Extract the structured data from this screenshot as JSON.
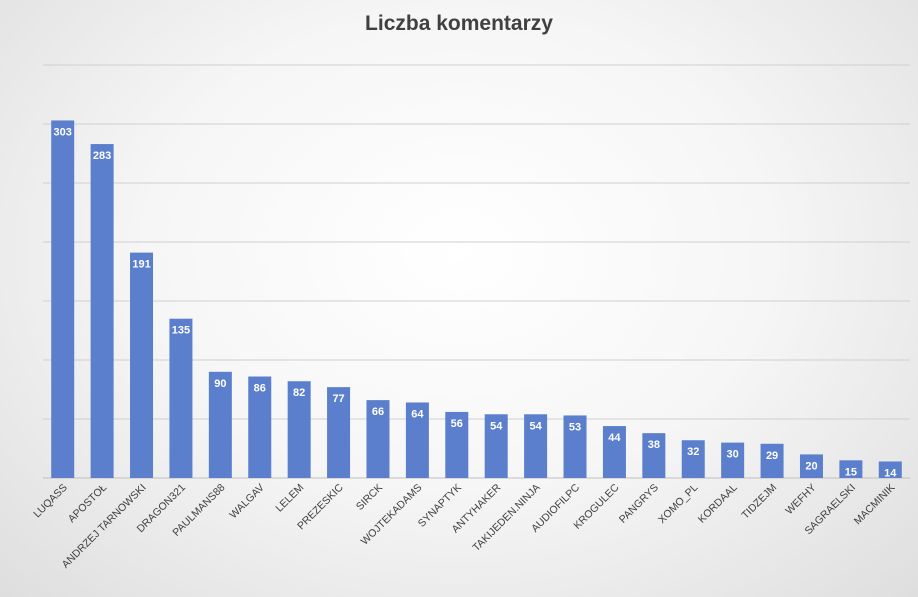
{
  "chart_data": {
    "type": "bar",
    "title": "Liczba komentarzy",
    "categories": [
      "LUQASS",
      "APOSTOŁ",
      "ANDRZEJ TARNOWSKI",
      "DRAGON321",
      "PAULMANS88",
      "WALGAV",
      "LELEM",
      "PREZESKIC",
      "SIRCK",
      "WOJTEKADAMS",
      "SYNAPTYK",
      "ANTYHAKER",
      "TAKIJEDEN.NINJA",
      "AUDIOFILPC",
      "KROGULEC",
      "PANGRYS",
      "XOMO_PL",
      "KORDAAL",
      "TIDZEJM",
      "WEFHY",
      "SAGRAELSKI",
      "MACMINIK"
    ],
    "series": [
      {
        "values": [
          303,
          283,
          191,
          135,
          90,
          86,
          82,
          77,
          66,
          64,
          56,
          54,
          54,
          53,
          44,
          38,
          32,
          30,
          29,
          20,
          15,
          14
        ]
      }
    ],
    "ylim": [
      0,
      350
    ],
    "y_axis_visible": false,
    "grid": true,
    "data_labels": true,
    "legend": "none",
    "xlabel": "",
    "ylabel": "",
    "colors": {
      "bar": "#5b7fcc",
      "label": "#ffffff",
      "grid": "#cfcfcf",
      "text": "#404040"
    }
  }
}
